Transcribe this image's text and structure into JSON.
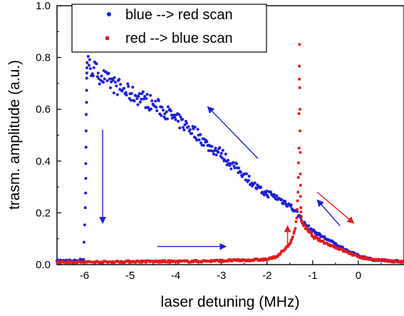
{
  "chart_data": {
    "type": "scatter",
    "xlabel": "laser detuning (MHz)",
    "ylabel": "trasm. amplitude (a.u.)",
    "xlim": [
      -6.6,
      1.0
    ],
    "ylim": [
      0.0,
      1.0
    ],
    "x_ticks": [
      -6,
      -5,
      -4,
      -3,
      -2,
      -1,
      0
    ],
    "x_tick_labels": [
      "-6",
      "-5",
      "-4",
      "-3",
      "-2",
      "-1",
      "0"
    ],
    "y_ticks": [
      0.0,
      0.2,
      0.4,
      0.6,
      0.8,
      1.0
    ],
    "y_tick_labels": [
      "0.0",
      "0.2",
      "0.4",
      "0.6",
      "0.8",
      "1.0"
    ],
    "legend_position": "top-left",
    "grid": false,
    "series": [
      {
        "name": "blue --> red scan",
        "color": "#1f1fd8",
        "marker": "circle",
        "x": [
          -6.6,
          -6.2,
          -6.02,
          -5.98,
          -5.97,
          -5.96,
          -5.95,
          -5.94,
          -5.9,
          -5.7,
          -5.5,
          -5.3,
          -5.0,
          -4.7,
          -4.5,
          -4.2,
          -4.0,
          -3.8,
          -3.5,
          -3.3,
          -3.0,
          -2.8,
          -2.5,
          -2.3,
          -2.1,
          -1.9,
          -1.7,
          -1.5,
          -1.4,
          -1.3,
          -1.2,
          -1.0,
          -0.8,
          -0.6,
          -0.4,
          -0.2,
          0.0,
          0.3,
          0.6,
          1.0
        ],
        "y": [
          0.015,
          0.015,
          0.02,
          0.22,
          0.39,
          0.58,
          0.72,
          0.78,
          0.77,
          0.74,
          0.71,
          0.69,
          0.66,
          0.64,
          0.62,
          0.59,
          0.56,
          0.54,
          0.5,
          0.46,
          0.43,
          0.39,
          0.35,
          0.31,
          0.28,
          0.27,
          0.25,
          0.23,
          0.21,
          0.19,
          0.16,
          0.13,
          0.11,
          0.09,
          0.07,
          0.05,
          0.035,
          0.02,
          0.015,
          0.012
        ]
      },
      {
        "name": "red --> blue scan",
        "color": "#e21b1b",
        "marker": "square",
        "x": [
          -6.6,
          -6.2,
          -6.0,
          -5.5,
          -5.0,
          -4.5,
          -4.0,
          -3.5,
          -3.0,
          -2.5,
          -2.0,
          -1.8,
          -1.7,
          -1.6,
          -1.5,
          -1.45,
          -1.4,
          -1.35,
          -1.32,
          -1.3,
          -1.29,
          -1.28,
          -1.27,
          -1.26,
          -1.25,
          -1.2,
          -1.1,
          -1.0,
          -0.8,
          -0.6,
          -0.4,
          -0.2,
          0.0,
          0.3,
          0.6,
          1.0
        ],
        "y": [
          0.01,
          0.01,
          0.01,
          0.01,
          0.012,
          0.012,
          0.012,
          0.013,
          0.015,
          0.017,
          0.02,
          0.03,
          0.045,
          0.06,
          0.08,
          0.1,
          0.13,
          0.18,
          0.28,
          0.45,
          0.85,
          0.6,
          0.35,
          0.22,
          0.17,
          0.15,
          0.13,
          0.11,
          0.09,
          0.075,
          0.06,
          0.045,
          0.03,
          0.02,
          0.015,
          0.01
        ]
      }
    ],
    "annotations": [
      {
        "type": "arrow",
        "color": "#1f1fd8",
        "from": [
          -5.6,
          0.52
        ],
        "to": [
          -5.6,
          0.16
        ]
      },
      {
        "type": "arrow",
        "color": "#1f1fd8",
        "from": [
          -4.4,
          0.07
        ],
        "to": [
          -2.9,
          0.07
        ]
      },
      {
        "type": "arrow",
        "color": "#1f1fd8",
        "from": [
          -2.2,
          0.41
        ],
        "to": [
          -3.3,
          0.61
        ]
      },
      {
        "type": "arrow",
        "color": "#1f1fd8",
        "from": [
          -0.4,
          0.15
        ],
        "to": [
          -0.9,
          0.25
        ]
      },
      {
        "type": "arrow",
        "color": "#e21b1b",
        "from": [
          -1.55,
          0.07
        ],
        "to": [
          -1.55,
          0.15
        ]
      },
      {
        "type": "arrow",
        "color": "#e21b1b",
        "from": [
          -0.9,
          0.28
        ],
        "to": [
          -0.1,
          0.16
        ]
      }
    ]
  }
}
